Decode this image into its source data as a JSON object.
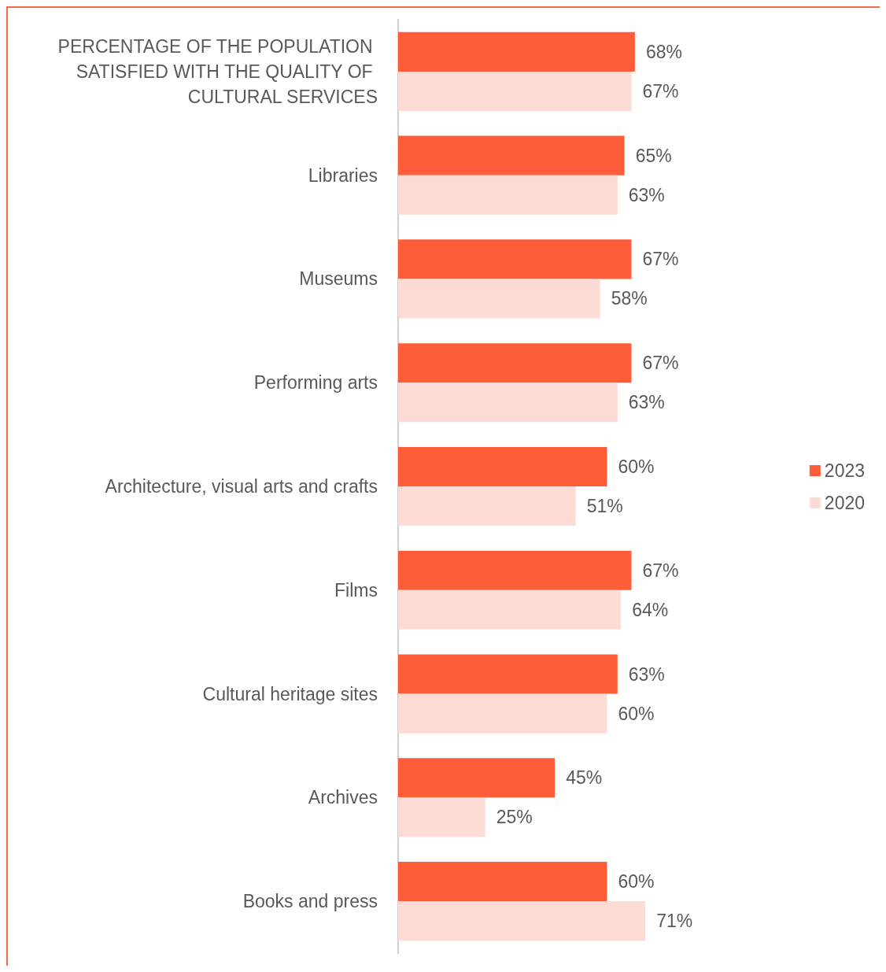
{
  "chart_data": {
    "type": "bar",
    "orientation": "horizontal",
    "categories": [
      "PERCENTAGE OF THE POPULATION SATISFIED WITH THE QUALITY OF CULTURAL SERVICES",
      "Libraries",
      "Museums",
      "Performing arts",
      "Architecture, visual arts and crafts",
      "Films",
      "Cultural heritage sites",
      "Archives",
      "Books and press"
    ],
    "series": [
      {
        "name": "2023",
        "color": "#ff5c3a",
        "values": [
          68,
          65,
          67,
          67,
          60,
          67,
          63,
          45,
          60
        ],
        "value_labels": [
          "68%",
          "65%",
          "67%",
          "67%",
          "60%",
          "67%",
          "63%",
          "45%",
          "60%"
        ]
      },
      {
        "name": "2020",
        "color": "#fddcd5",
        "values": [
          67,
          63,
          58,
          63,
          51,
          64,
          60,
          25,
          71
        ],
        "value_labels": [
          "67%",
          "63%",
          "58%",
          "63%",
          "51%",
          "64%",
          "60%",
          "25%",
          "71%"
        ]
      }
    ],
    "legend": "right",
    "tick_labels": "y"
  }
}
